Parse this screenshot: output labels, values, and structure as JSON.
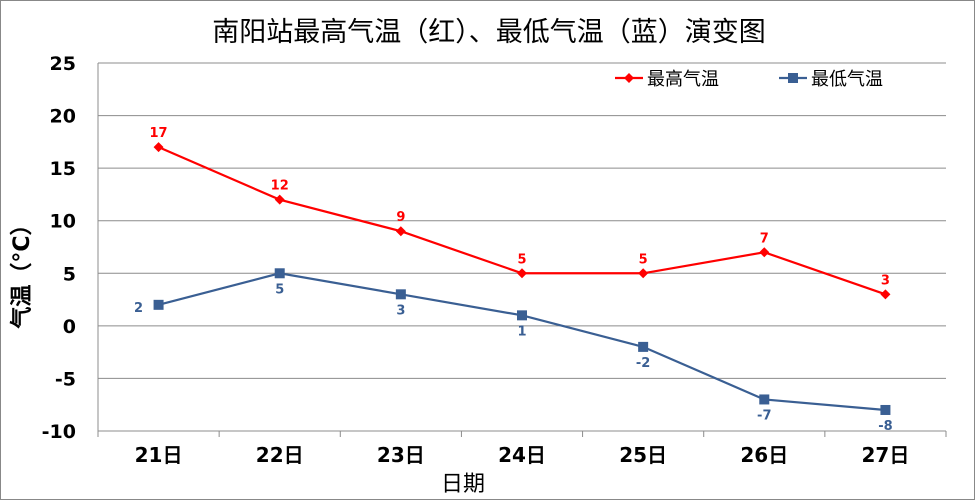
{
  "chart_data": {
    "type": "line",
    "title": "南阳站最高气温（红）、最低气温（蓝）演变图",
    "xlabel": "日期",
    "ylabel": "气温（°C）",
    "categories": [
      "21日",
      "22日",
      "23日",
      "24日",
      "25日",
      "26日",
      "27日"
    ],
    "ylim": [
      -10,
      25
    ],
    "yticks": [
      25,
      20,
      15,
      10,
      5,
      0,
      -5,
      -10
    ],
    "grid": true,
    "legend": "top-right",
    "series": [
      {
        "name": "最高气温",
        "color": "#ff0000",
        "marker": "diamond",
        "values": [
          17,
          12,
          9,
          5,
          5,
          7,
          3
        ]
      },
      {
        "name": "最低气温",
        "color": "#3a5f93",
        "marker": "square",
        "values": [
          2,
          5,
          3,
          1,
          -2,
          -7,
          -8
        ]
      }
    ]
  }
}
